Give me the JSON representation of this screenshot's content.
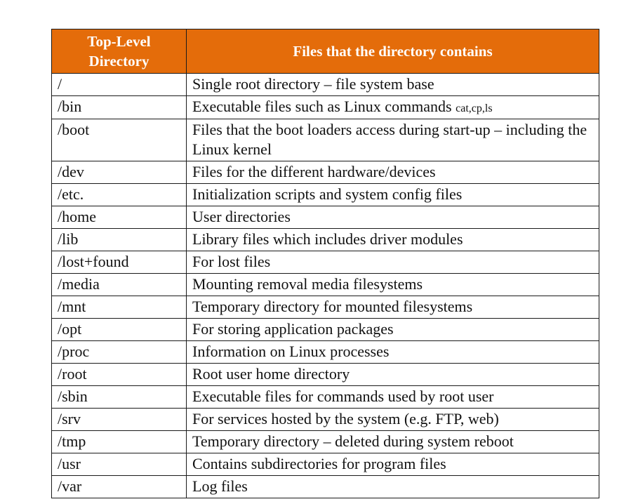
{
  "table": {
    "headers": {
      "col1": "Top-Level Directory",
      "col2": "Files that the directory contains"
    },
    "rows": [
      {
        "dir": "/",
        "desc": "Single root directory – file system base",
        "note": ""
      },
      {
        "dir": "/bin",
        "desc": "Executable files such as Linux commands ",
        "note": "cat,cp,ls"
      },
      {
        "dir": "/boot",
        "desc": "Files that the boot loaders access during start-up – including the Linux kernel",
        "note": ""
      },
      {
        "dir": "/dev",
        "desc": "Files for the different hardware/devices",
        "note": ""
      },
      {
        "dir": "/etc.",
        "desc": "Initialization scripts and system config files",
        "note": ""
      },
      {
        "dir": "/home",
        "desc": "User directories",
        "note": ""
      },
      {
        "dir": "/lib",
        "desc": "Library files which includes driver modules",
        "note": ""
      },
      {
        "dir": "/lost+found",
        "desc": "For lost files",
        "note": ""
      },
      {
        "dir": "/media",
        "desc": "Mounting removal media filesystems",
        "note": ""
      },
      {
        "dir": "/mnt",
        "desc": "Temporary directory for mounted filesystems",
        "note": ""
      },
      {
        "dir": "/opt",
        "desc": "For storing application packages",
        "note": ""
      },
      {
        "dir": "/proc",
        "desc": "Information on Linux processes",
        "note": ""
      },
      {
        "dir": "/root",
        "desc": "Root user home directory",
        "note": ""
      },
      {
        "dir": "/sbin",
        "desc": "Executable files for commands used by root user",
        "note": ""
      },
      {
        "dir": "/srv",
        "desc": "For services hosted by the system (e.g. FTP, web)",
        "note": ""
      },
      {
        "dir": "/tmp",
        "desc": "Temporary directory – deleted during system reboot",
        "note": ""
      },
      {
        "dir": "/usr",
        "desc": "Contains subdirectories for program files",
        "note": ""
      },
      {
        "dir": "/var",
        "desc": "Log files",
        "note": ""
      }
    ]
  },
  "colors": {
    "header_background": "#e46c0a",
    "header_text": "#ffffff",
    "border": "#1a1a1a",
    "body_text": "#111111"
  }
}
